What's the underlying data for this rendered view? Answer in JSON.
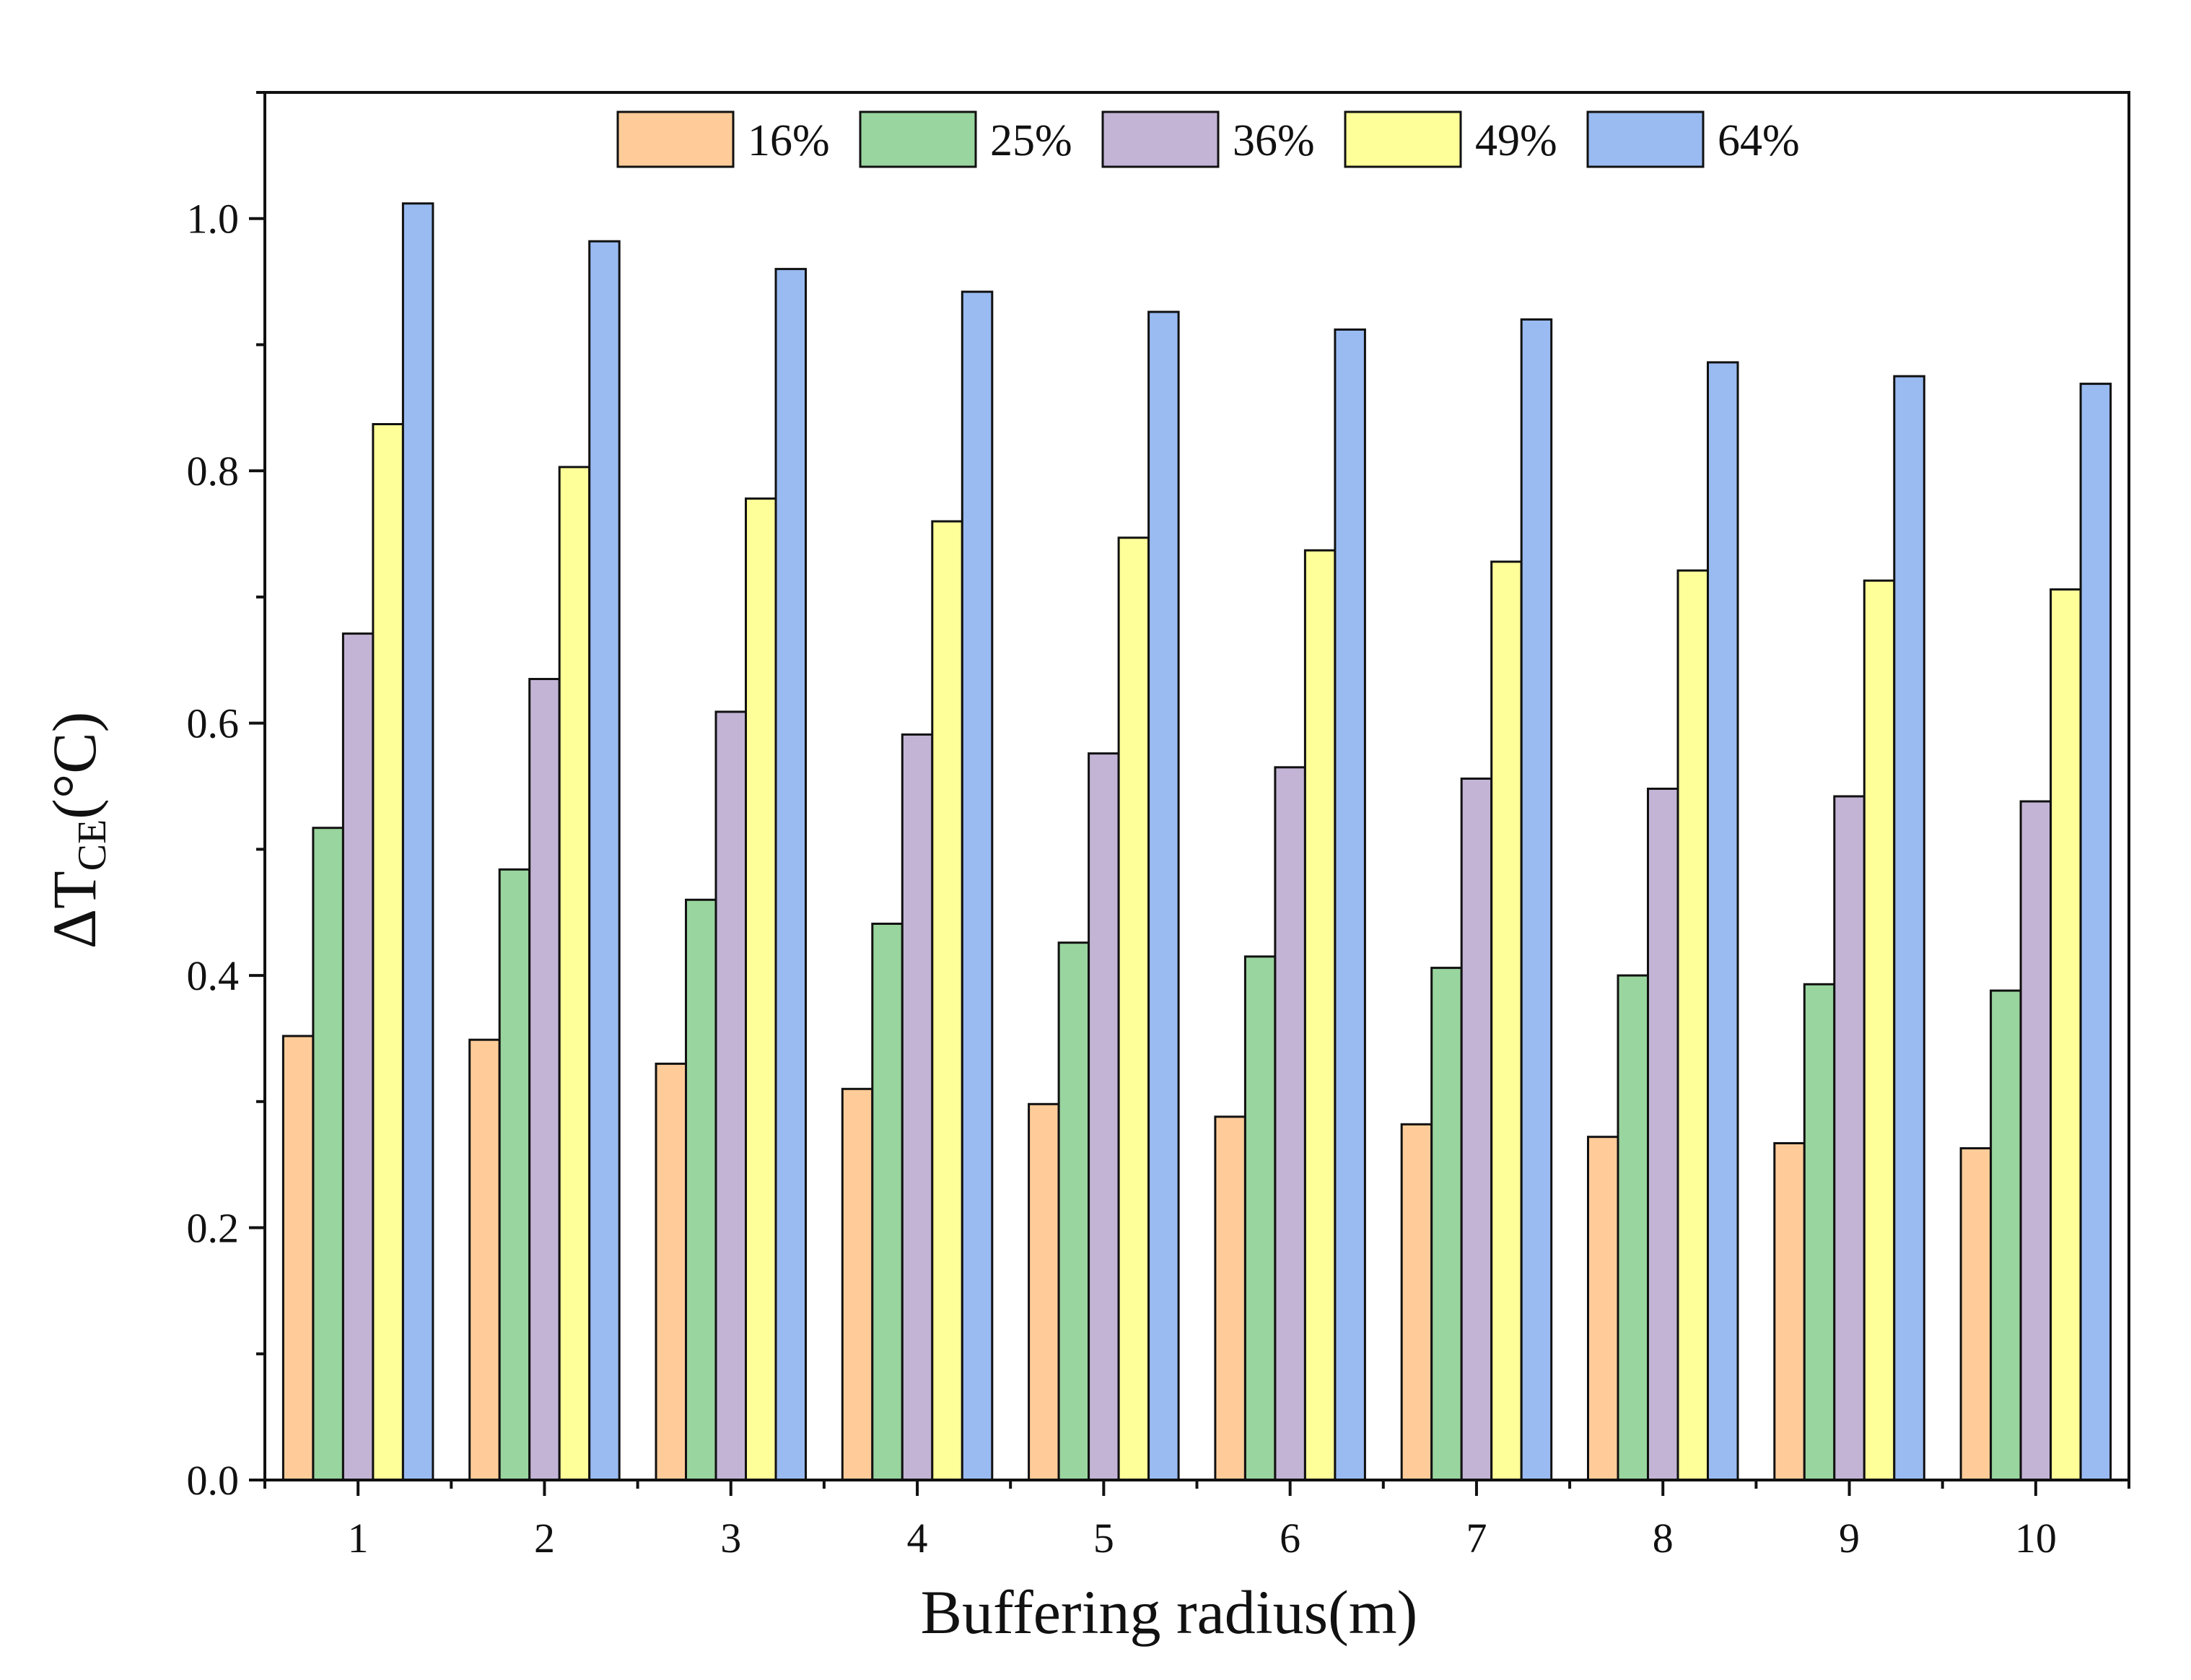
{
  "chart_data": {
    "type": "bar",
    "title": "",
    "xlabel": "Buffering radius(m)",
    "ylabel": {
      "main": "ΔT",
      "sub": "CE",
      "unit": "(°C)"
    },
    "categories": [
      "1",
      "2",
      "3",
      "4",
      "5",
      "6",
      "7",
      "8",
      "9",
      "10"
    ],
    "yticks": [
      "0.0",
      "0.2",
      "0.4",
      "0.6",
      "0.8",
      "1.0"
    ],
    "ytick_values": [
      0.0,
      0.2,
      0.4,
      0.6,
      0.8,
      1.0
    ],
    "ylim": [
      0,
      1.1
    ],
    "legend_position": "top-center",
    "series": [
      {
        "name": "16%",
        "color": "#FFCC99",
        "values": [
          0.352,
          0.349,
          0.33,
          0.31,
          0.298,
          0.288,
          0.282,
          0.272,
          0.267,
          0.263
        ]
      },
      {
        "name": "25%",
        "color": "#99D59E",
        "values": [
          0.517,
          0.484,
          0.46,
          0.441,
          0.426,
          0.415,
          0.406,
          0.4,
          0.393,
          0.388
        ]
      },
      {
        "name": "36%",
        "color": "#C3B4D6",
        "values": [
          0.671,
          0.635,
          0.609,
          0.591,
          0.576,
          0.565,
          0.556,
          0.548,
          0.542,
          0.538
        ]
      },
      {
        "name": "49%",
        "color": "#FFFF99",
        "values": [
          0.837,
          0.803,
          0.778,
          0.76,
          0.747,
          0.737,
          0.728,
          0.721,
          0.713,
          0.706
        ]
      },
      {
        "name": "64%",
        "color": "#99BBF2",
        "values": [
          1.012,
          0.982,
          0.96,
          0.942,
          0.926,
          0.912,
          0.92,
          0.886,
          0.875,
          0.869
        ]
      }
    ]
  }
}
